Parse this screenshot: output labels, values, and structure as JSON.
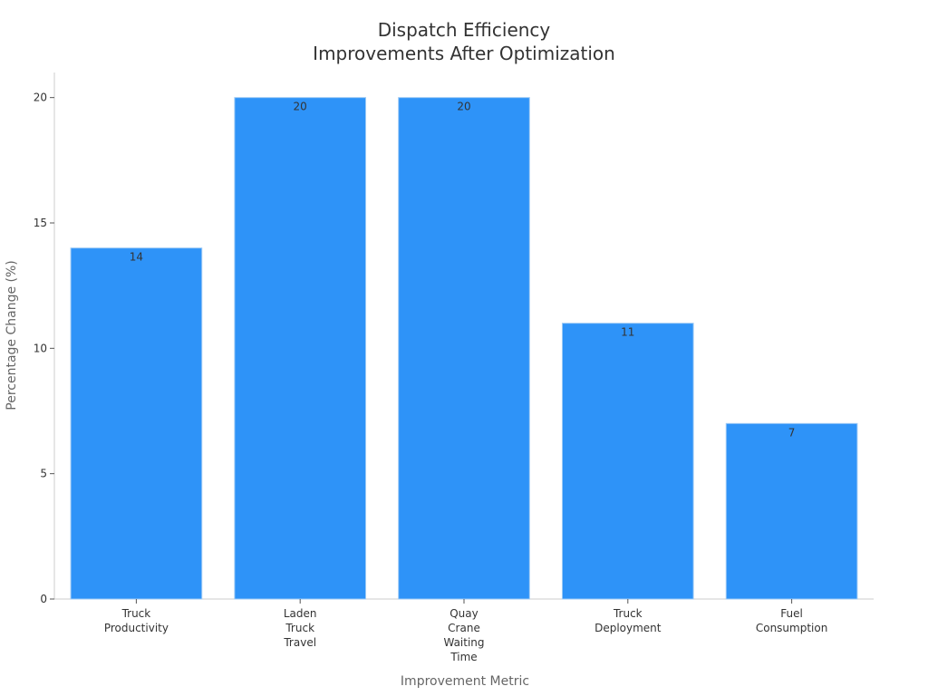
{
  "chart_data": {
    "type": "bar",
    "title": [
      "Dispatch Efficiency",
      "Improvements After Optimization"
    ],
    "xlabel": "Improvement Metric",
    "ylabel": "Percentage Change (%)",
    "categories": [
      [
        "Truck",
        "Productivity"
      ],
      [
        "Laden",
        "Truck",
        "Travel"
      ],
      [
        "Quay",
        "Crane",
        "Waiting",
        "Time"
      ],
      [
        "Truck",
        "Deployment"
      ],
      [
        "Fuel",
        "Consumption"
      ]
    ],
    "values": [
      14,
      20,
      20,
      11,
      7
    ],
    "data_labels": [
      "14",
      "20",
      "20",
      "11",
      "7"
    ],
    "ylim": [
      0,
      21
    ],
    "yticks": [
      0,
      5,
      10,
      15,
      20
    ],
    "ytick_labels": [
      "0",
      "5",
      "10",
      "15",
      "20"
    ],
    "grid": false,
    "colors": {
      "bar": "#2e93f8",
      "axis": "#cccccc",
      "text": "#333333",
      "axis_title": "#666666"
    }
  }
}
